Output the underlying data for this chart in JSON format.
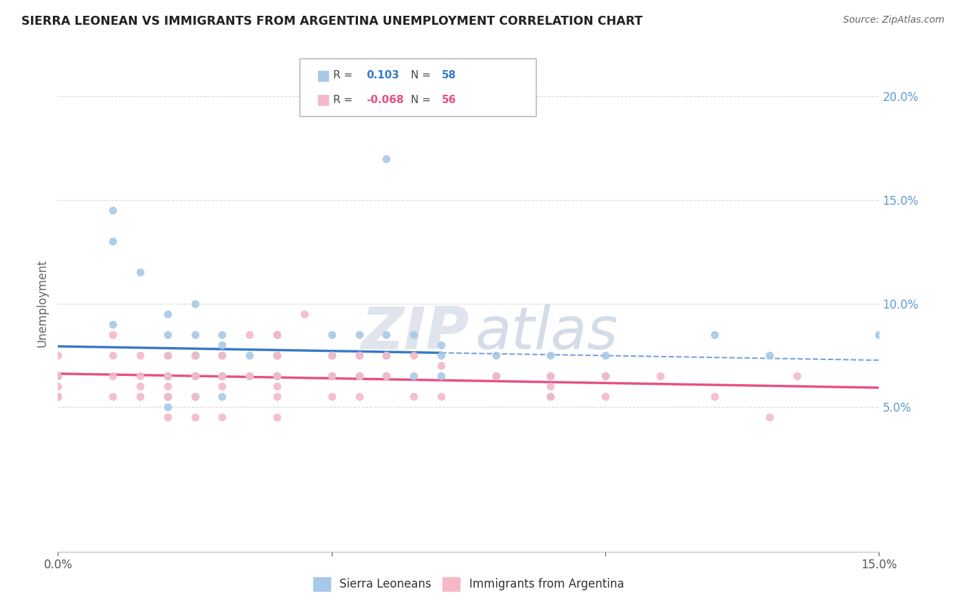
{
  "title": "SIERRA LEONEAN VS IMMIGRANTS FROM ARGENTINA UNEMPLOYMENT CORRELATION CHART",
  "source": "Source: ZipAtlas.com",
  "ylabel": "Unemployment",
  "series1_name": "Sierra Leoneans",
  "series1_color": "#a8c8e8",
  "series1_R": 0.103,
  "series1_N": 58,
  "series2_name": "Immigrants from Argentina",
  "series2_color": "#f5b8c8",
  "series2_R": -0.068,
  "series2_N": 56,
  "xlim": [
    0.0,
    0.15
  ],
  "ylim": [
    -0.02,
    0.22
  ],
  "yticks": [
    0.05,
    0.1,
    0.15,
    0.2
  ],
  "ytick_labels": [
    "5.0%",
    "10.0%",
    "15.0%",
    "20.0%"
  ],
  "gridline_color": "#d8d8d8",
  "trend1_color": "#3878c8",
  "trend2_color": "#e85080",
  "trend1_solid_end": 0.07,
  "sierra_x": [
    0.0,
    0.0,
    0.01,
    0.01,
    0.01,
    0.015,
    0.02,
    0.02,
    0.02,
    0.02,
    0.02,
    0.02,
    0.02,
    0.025,
    0.025,
    0.025,
    0.025,
    0.025,
    0.025,
    0.025,
    0.03,
    0.03,
    0.03,
    0.03,
    0.03,
    0.03,
    0.035,
    0.035,
    0.04,
    0.04,
    0.04,
    0.04,
    0.04,
    0.05,
    0.05,
    0.05,
    0.055,
    0.055,
    0.055,
    0.06,
    0.06,
    0.06,
    0.06,
    0.065,
    0.065,
    0.07,
    0.07,
    0.07,
    0.08,
    0.08,
    0.09,
    0.09,
    0.09,
    0.1,
    0.1,
    0.12,
    0.13,
    0.15
  ],
  "sierra_y": [
    0.065,
    0.055,
    0.09,
    0.145,
    0.13,
    0.115,
    0.095,
    0.085,
    0.075,
    0.065,
    0.065,
    0.055,
    0.05,
    0.1,
    0.085,
    0.075,
    0.075,
    0.065,
    0.065,
    0.055,
    0.085,
    0.08,
    0.075,
    0.065,
    0.065,
    0.055,
    0.075,
    0.065,
    0.085,
    0.075,
    0.075,
    0.065,
    0.065,
    0.085,
    0.075,
    0.065,
    0.085,
    0.075,
    0.065,
    0.085,
    0.075,
    0.065,
    0.17,
    0.085,
    0.065,
    0.08,
    0.075,
    0.065,
    0.075,
    0.065,
    0.075,
    0.065,
    0.055,
    0.075,
    0.065,
    0.085,
    0.075,
    0.085
  ],
  "argentina_x": [
    0.0,
    0.0,
    0.0,
    0.0,
    0.01,
    0.01,
    0.01,
    0.01,
    0.015,
    0.015,
    0.015,
    0.015,
    0.02,
    0.02,
    0.02,
    0.02,
    0.02,
    0.025,
    0.025,
    0.025,
    0.025,
    0.03,
    0.03,
    0.03,
    0.03,
    0.035,
    0.035,
    0.04,
    0.04,
    0.04,
    0.04,
    0.04,
    0.04,
    0.045,
    0.05,
    0.05,
    0.05,
    0.055,
    0.055,
    0.055,
    0.06,
    0.06,
    0.065,
    0.065,
    0.07,
    0.07,
    0.08,
    0.09,
    0.09,
    0.09,
    0.1,
    0.1,
    0.11,
    0.12,
    0.13,
    0.135
  ],
  "argentina_y": [
    0.075,
    0.065,
    0.06,
    0.055,
    0.085,
    0.075,
    0.065,
    0.055,
    0.075,
    0.065,
    0.06,
    0.055,
    0.075,
    0.065,
    0.06,
    0.055,
    0.045,
    0.075,
    0.065,
    0.055,
    0.045,
    0.075,
    0.065,
    0.06,
    0.045,
    0.085,
    0.065,
    0.085,
    0.075,
    0.065,
    0.06,
    0.055,
    0.045,
    0.095,
    0.075,
    0.065,
    0.055,
    0.075,
    0.065,
    0.055,
    0.075,
    0.065,
    0.075,
    0.055,
    0.07,
    0.055,
    0.065,
    0.065,
    0.055,
    0.06,
    0.065,
    0.055,
    0.065,
    0.055,
    0.045,
    0.065
  ]
}
